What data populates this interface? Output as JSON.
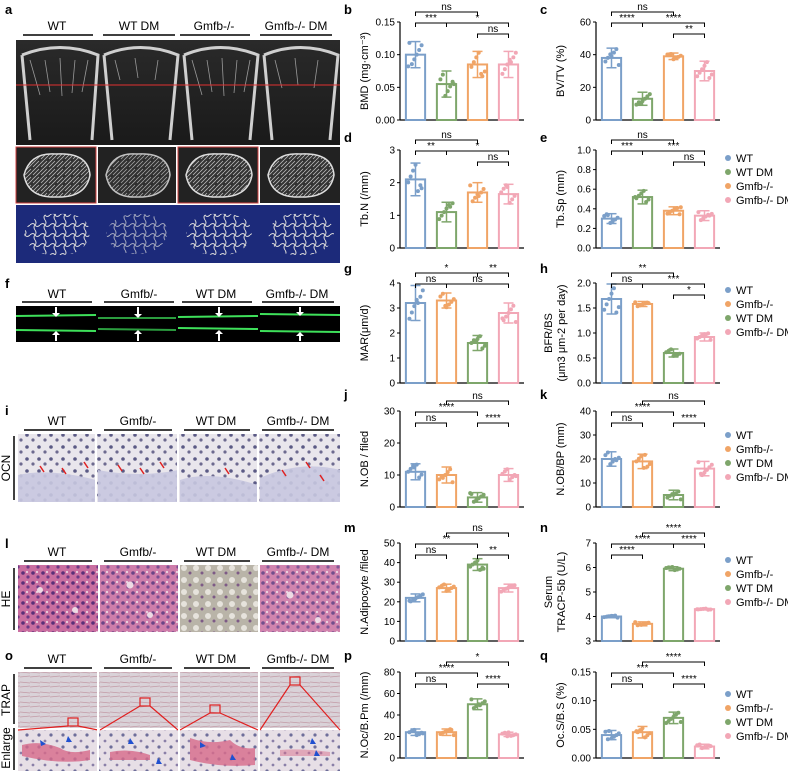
{
  "panel_letters": [
    "a",
    "b",
    "c",
    "d",
    "e",
    "f",
    "g",
    "h",
    "i",
    "j",
    "k",
    "l",
    "m",
    "n",
    "o",
    "p",
    "q"
  ],
  "group_labels_a": [
    "WT",
    "WT DM",
    "Gmfb-/-",
    "Gmfb-/- DM"
  ],
  "group_labels_f": [
    "WT",
    "Gmfb/-",
    "WT DM",
    "Gmfb-/- DM"
  ],
  "group_labels_i": [
    "WT",
    "Gmfb/-",
    "WT DM",
    "Gmfb-/- DM"
  ],
  "group_labels_l": [
    "WT",
    "Gmfb/-",
    "WT DM",
    "Gmfb-/- DM"
  ],
  "group_labels_o": [
    "WT",
    "Gmfb/-",
    "WT DM",
    "Gmfb-/- DM"
  ],
  "side_labels": {
    "ocn": "OCN",
    "he": "HE",
    "trap": "TRAP",
    "enlarge": "Enlarge"
  },
  "legend_1": [
    {
      "label": "WT",
      "color": "#7b9fc9"
    },
    {
      "label": "WT DM",
      "color": "#7ea66b"
    },
    {
      "label": "Gmfb-/-",
      "color": "#f0a466"
    },
    {
      "label": "Gmfb-/- DM",
      "color": "#f2a7b6"
    }
  ],
  "legend_2": [
    {
      "label": "WT",
      "color": "#7b9fc9"
    },
    {
      "label": "Gmfb-/-",
      "color": "#f0a466"
    },
    {
      "label": "WT DM",
      "color": "#7ea66b"
    },
    {
      "label": "Gmfb-/- DM",
      "color": "#f2a7b6"
    }
  ],
  "chart_data": [
    {
      "id": "b",
      "type": "bar",
      "ylabel": "BMD (mg·cm⁻³)",
      "ylim": [
        0,
        0.15
      ],
      "ticks": [
        "0.00",
        "0.05",
        "0.10",
        "0.15"
      ],
      "tickvals": [
        0,
        0.05,
        0.1,
        0.15
      ],
      "order": [
        "WT",
        "WT DM",
        "Gmfb-/-",
        "Gmfb-/- DM"
      ],
      "colors": [
        "#7b9fc9",
        "#7ea66b",
        "#f0a466",
        "#f2a7b6"
      ],
      "values": [
        0.1,
        0.055,
        0.085,
        0.085
      ],
      "errors": [
        0.02,
        0.02,
        0.02,
        0.02
      ],
      "sig": [
        {
          "a": 0,
          "b": 2,
          "t": "ns",
          "lvl": 2
        },
        {
          "a": 0,
          "b": 1,
          "t": "***",
          "lvl": 1
        },
        {
          "a": 1,
          "b": 3,
          "t": "*",
          "lvl": 1
        },
        {
          "a": 2,
          "b": 3,
          "t": "ns",
          "lvl": 0
        }
      ]
    },
    {
      "id": "c",
      "type": "bar",
      "ylabel": "BV/TV (%)",
      "ylim": [
        0,
        60
      ],
      "ticks": [
        "0",
        "20",
        "40",
        "60"
      ],
      "tickvals": [
        0,
        20,
        40,
        60
      ],
      "order": [
        "WT",
        "WT DM",
        "Gmfb-/-",
        "Gmfb-/- DM"
      ],
      "colors": [
        "#7b9fc9",
        "#7ea66b",
        "#f0a466",
        "#f2a7b6"
      ],
      "values": [
        38,
        13,
        39,
        30
      ],
      "errors": [
        6,
        4,
        2,
        6
      ],
      "sig": [
        {
          "a": 0,
          "b": 2,
          "t": "ns",
          "lvl": 2
        },
        {
          "a": 0,
          "b": 1,
          "t": "****",
          "lvl": 1
        },
        {
          "a": 1,
          "b": 3,
          "t": "****",
          "lvl": 1
        },
        {
          "a": 2,
          "b": 3,
          "t": "**",
          "lvl": 0
        }
      ]
    },
    {
      "id": "d",
      "type": "bar",
      "ylabel": "Tb.N (/mm)",
      "ylim": [
        0,
        3
      ],
      "ticks": [
        "0",
        "1",
        "2",
        "3"
      ],
      "tickvals": [
        0,
        1,
        2,
        3
      ],
      "order": [
        "WT",
        "WT DM",
        "Gmfb-/-",
        "Gmfb-/- DM"
      ],
      "colors": [
        "#7b9fc9",
        "#7ea66b",
        "#f0a466",
        "#f2a7b6"
      ],
      "values": [
        2.1,
        1.1,
        1.7,
        1.65
      ],
      "errors": [
        0.5,
        0.3,
        0.3,
        0.3
      ],
      "sig": [
        {
          "a": 0,
          "b": 2,
          "t": "ns",
          "lvl": 2
        },
        {
          "a": 0,
          "b": 1,
          "t": "**",
          "lvl": 1
        },
        {
          "a": 1,
          "b": 3,
          "t": "*",
          "lvl": 1
        },
        {
          "a": 2,
          "b": 3,
          "t": "ns",
          "lvl": 0
        }
      ]
    },
    {
      "id": "e",
      "type": "bar",
      "ylabel": "Tb.Sp (mm)",
      "ylim": [
        0,
        1.0
      ],
      "ticks": [
        "0.0",
        "0.2",
        "0.4",
        "0.6",
        "0.8",
        "1.0"
      ],
      "tickvals": [
        0,
        0.2,
        0.4,
        0.6,
        0.8,
        1.0
      ],
      "order": [
        "WT",
        "WT DM",
        "Gmfb-/-",
        "Gmfb-/- DM"
      ],
      "colors": [
        "#7b9fc9",
        "#7ea66b",
        "#f0a466",
        "#f2a7b6"
      ],
      "values": [
        0.3,
        0.52,
        0.38,
        0.33
      ],
      "errors": [
        0.05,
        0.07,
        0.04,
        0.05
      ],
      "sig": [
        {
          "a": 0,
          "b": 2,
          "t": "ns",
          "lvl": 2
        },
        {
          "a": 0,
          "b": 1,
          "t": "***",
          "lvl": 1
        },
        {
          "a": 1,
          "b": 3,
          "t": "***",
          "lvl": 1
        },
        {
          "a": 2,
          "b": 3,
          "t": "ns",
          "lvl": 0
        }
      ]
    },
    {
      "id": "g",
      "type": "bar",
      "ylabel": "MAR(μm/d)",
      "ylim": [
        0,
        4
      ],
      "ticks": [
        "0",
        "1",
        "2",
        "3",
        "4"
      ],
      "tickvals": [
        0,
        1,
        2,
        3,
        4
      ],
      "order": [
        "WT",
        "Gmfb-/-",
        "WT DM",
        "Gmfb-/- DM"
      ],
      "colors": [
        "#7b9fc9",
        "#f0a466",
        "#7ea66b",
        "#f2a7b6"
      ],
      "values": [
        3.2,
        3.3,
        1.6,
        2.8
      ],
      "errors": [
        0.7,
        0.3,
        0.3,
        0.4
      ],
      "sig": [
        {
          "a": 0,
          "b": 2,
          "t": "*",
          "lvl": 2
        },
        {
          "a": 0,
          "b": 1,
          "t": "ns",
          "lvl": 1
        },
        {
          "a": 1,
          "b": 3,
          "t": "ns",
          "lvl": 1
        },
        {
          "a": 2,
          "b": 3,
          "t": "**",
          "lvl": 2
        }
      ]
    },
    {
      "id": "h",
      "type": "bar",
      "ylabel": "BFR/BS\n(μm3 μm-2 per day)",
      "ylim": [
        0,
        2.0
      ],
      "ticks": [
        "0.0",
        "0.5",
        "1.0",
        "1.5",
        "2.0"
      ],
      "tickvals": [
        0,
        0.5,
        1.0,
        1.5,
        2.0
      ],
      "order": [
        "WT",
        "Gmfb-/-",
        "WT DM",
        "Gmfb-/- DM"
      ],
      "colors": [
        "#7b9fc9",
        "#f0a466",
        "#7ea66b",
        "#f2a7b6"
      ],
      "values": [
        1.68,
        1.58,
        0.6,
        0.92
      ],
      "errors": [
        0.3,
        0.05,
        0.08,
        0.08
      ],
      "sig": [
        {
          "a": 0,
          "b": 2,
          "t": "**",
          "lvl": 2
        },
        {
          "a": 0,
          "b": 1,
          "t": "ns",
          "lvl": 1
        },
        {
          "a": 1,
          "b": 3,
          "t": "***",
          "lvl": 1
        },
        {
          "a": 2,
          "b": 3,
          "t": "*",
          "lvl": 0
        }
      ]
    },
    {
      "id": "j",
      "type": "bar",
      "ylabel": "N.OB / filed",
      "ylim": [
        0,
        30
      ],
      "ticks": [
        "0",
        "10",
        "20",
        "30"
      ],
      "tickvals": [
        0,
        10,
        20,
        30
      ],
      "order": [
        "WT",
        "Gmfb-/-",
        "WT DM",
        "Gmfb-/- DM"
      ],
      "colors": [
        "#7b9fc9",
        "#f0a466",
        "#7ea66b",
        "#f2a7b6"
      ],
      "values": [
        11,
        10,
        3,
        10
      ],
      "errors": [
        2.5,
        2.5,
        1.5,
        2
      ],
      "sig": [
        {
          "a": 1,
          "b": 3,
          "t": "ns",
          "lvl": 2
        },
        {
          "a": 0,
          "b": 2,
          "t": "****",
          "lvl": 1
        },
        {
          "a": 0,
          "b": 1,
          "t": "ns",
          "lvl": 0
        },
        {
          "a": 2,
          "b": 3,
          "t": "****",
          "lvl": 0
        }
      ]
    },
    {
      "id": "k",
      "type": "bar",
      "ylabel": "N.OB/BP (mm)",
      "ylim": [
        0,
        40
      ],
      "ticks": [
        "0",
        "10",
        "20",
        "30",
        "40"
      ],
      "tickvals": [
        0,
        10,
        20,
        30,
        40
      ],
      "order": [
        "WT",
        "Gmfb-/-",
        "WT DM",
        "Gmfb-/- DM"
      ],
      "colors": [
        "#7b9fc9",
        "#f0a466",
        "#7ea66b",
        "#f2a7b6"
      ],
      "values": [
        20,
        19,
        5,
        16
      ],
      "errors": [
        3,
        3,
        2,
        3
      ],
      "sig": [
        {
          "a": 1,
          "b": 3,
          "t": "ns",
          "lvl": 2
        },
        {
          "a": 0,
          "b": 2,
          "t": "****",
          "lvl": 1
        },
        {
          "a": 0,
          "b": 1,
          "t": "ns",
          "lvl": 0
        },
        {
          "a": 2,
          "b": 3,
          "t": "****",
          "lvl": 0
        }
      ]
    },
    {
      "id": "m",
      "type": "bar",
      "ylabel": "N.Adipocyte /filed",
      "ylim": [
        0,
        50
      ],
      "ticks": [
        "0",
        "10",
        "20",
        "30",
        "40",
        "50"
      ],
      "tickvals": [
        0,
        10,
        20,
        30,
        40,
        50
      ],
      "order": [
        "WT",
        "Gmfb-/-",
        "WT DM",
        "Gmfb-/- DM"
      ],
      "colors": [
        "#7b9fc9",
        "#f0a466",
        "#7ea66b",
        "#f2a7b6"
      ],
      "values": [
        22,
        27,
        39,
        27
      ],
      "errors": [
        2,
        2,
        3,
        2
      ],
      "sig": [
        {
          "a": 1,
          "b": 3,
          "t": "ns",
          "lvl": 2
        },
        {
          "a": 0,
          "b": 2,
          "t": "**",
          "lvl": 1
        },
        {
          "a": 0,
          "b": 1,
          "t": "ns",
          "lvl": 0
        },
        {
          "a": 2,
          "b": 3,
          "t": "**",
          "lvl": 0
        }
      ]
    },
    {
      "id": "n",
      "type": "bar",
      "ylabel": "Serum\nTRACP-5b (U/L)",
      "ylim": [
        3,
        7
      ],
      "ticks": [
        "3",
        "4",
        "5",
        "6",
        "7"
      ],
      "tickvals": [
        3,
        4,
        5,
        6,
        7
      ],
      "order": [
        "WT",
        "Gmfb-/-",
        "WT DM",
        "Gmfb-/- DM"
      ],
      "colors": [
        "#7b9fc9",
        "#f0a466",
        "#7ea66b",
        "#f2a7b6"
      ],
      "values": [
        4.0,
        3.7,
        5.95,
        4.3
      ],
      "errors": [
        0.05,
        0.08,
        0.08,
        0.03
      ],
      "sig": [
        {
          "a": 1,
          "b": 3,
          "t": "****",
          "lvl": 2
        },
        {
          "a": 0,
          "b": 2,
          "t": "****",
          "lvl": 1
        },
        {
          "a": 0,
          "b": 1,
          "t": "****",
          "lvl": 0
        },
        {
          "a": 2,
          "b": 3,
          "t": "****",
          "lvl": 1
        }
      ]
    },
    {
      "id": "p",
      "type": "bar",
      "ylabel": "N.Oc/B.Pm (/mm)",
      "ylim": [
        0,
        80
      ],
      "ticks": [
        "0",
        "20",
        "40",
        "60",
        "80"
      ],
      "tickvals": [
        0,
        20,
        40,
        60,
        80
      ],
      "order": [
        "WT",
        "Gmfb-/-",
        "WT DM",
        "Gmfb-/- DM"
      ],
      "colors": [
        "#7b9fc9",
        "#f0a466",
        "#7ea66b",
        "#f2a7b6"
      ],
      "values": [
        24,
        24,
        50,
        22
      ],
      "errors": [
        3,
        3,
        5,
        2
      ],
      "sig": [
        {
          "a": 1,
          "b": 3,
          "t": "*",
          "lvl": 2
        },
        {
          "a": 0,
          "b": 2,
          "t": "****",
          "lvl": 1
        },
        {
          "a": 0,
          "b": 1,
          "t": "ns",
          "lvl": 0
        },
        {
          "a": 2,
          "b": 3,
          "t": "****",
          "lvl": 0
        }
      ]
    },
    {
      "id": "q",
      "type": "bar",
      "ylabel": "Oc.S/B.S (%)",
      "ylim": [
        0,
        0.15
      ],
      "ticks": [
        "0.00",
        "0.05",
        "0.10",
        "0.15"
      ],
      "tickvals": [
        0,
        0.05,
        0.1,
        0.15
      ],
      "order": [
        "WT",
        "Gmfb-/-",
        "WT DM",
        "Gmfb-/- DM"
      ],
      "colors": [
        "#7b9fc9",
        "#f0a466",
        "#7ea66b",
        "#f2a7b6"
      ],
      "values": [
        0.04,
        0.045,
        0.07,
        0.02
      ],
      "errors": [
        0.008,
        0.01,
        0.01,
        0.004
      ],
      "sig": [
        {
          "a": 1,
          "b": 3,
          "t": "****",
          "lvl": 2
        },
        {
          "a": 0,
          "b": 2,
          "t": "***",
          "lvl": 1
        },
        {
          "a": 0,
          "b": 1,
          "t": "ns",
          "lvl": 0
        },
        {
          "a": 2,
          "b": 3,
          "t": "****",
          "lvl": 0
        }
      ]
    }
  ]
}
